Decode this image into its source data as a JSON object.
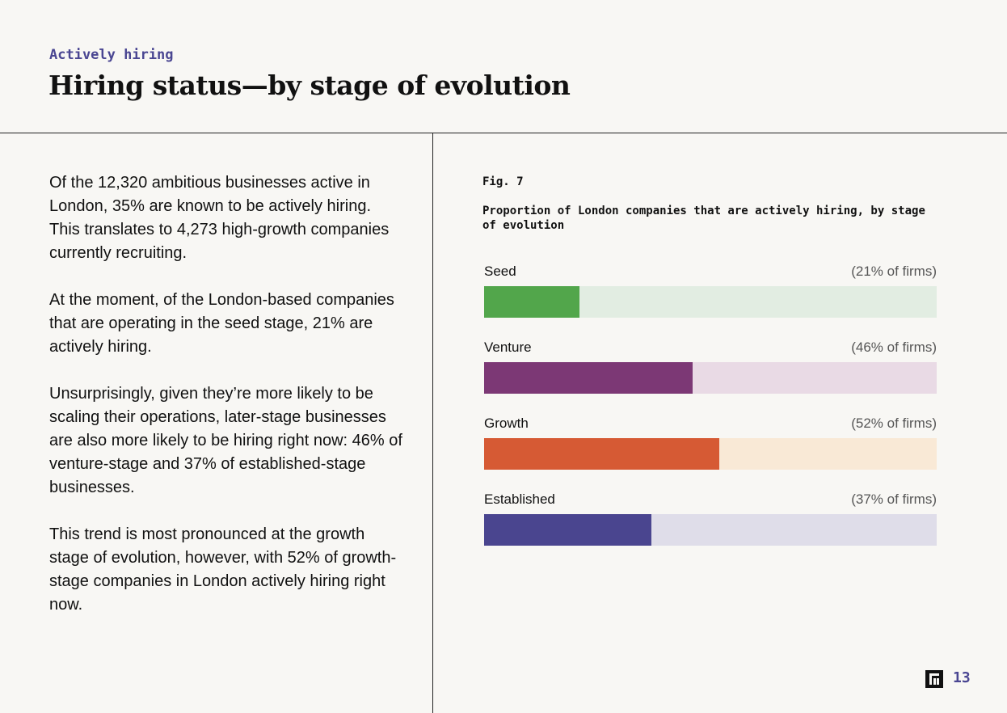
{
  "header": {
    "kicker": "Actively hiring",
    "title": "Hiring status—by stage of evolution"
  },
  "body": {
    "paragraphs": [
      "Of the 12,320 ambitious businesses active in London, 35% are known to be actively hiring. This translates to 4,273 high-growth companies currently recruiting.",
      "At the moment, of the London-based companies that are operating in the seed stage, 21% are actively hiring.",
      "Unsurprisingly, given they’re more likely to be scaling their operations, later-stage businesses are also more likely to be hiring right now: 46% of venture-stage and 37% of established-stage businesses.",
      "This trend is most pronounced at the growth stage of evolution, however, with 52% of growth-stage companies in London actively hiring right now."
    ]
  },
  "figure": {
    "label": "Fig. 7",
    "caption": "Proportion of London companies that are actively hiring, by stage of evolution"
  },
  "chart_data": {
    "type": "bar",
    "orientation": "horizontal",
    "categories": [
      "Seed",
      "Venture",
      "Growth",
      "Established"
    ],
    "values": [
      21,
      46,
      52,
      37
    ],
    "value_labels": [
      "(21% of firms)",
      "(46% of firms)",
      "(52% of firms)",
      "(37% of firms)"
    ],
    "xlim": [
      0,
      100
    ],
    "unit": "%",
    "grid": false,
    "colors": [
      "#52a64b",
      "#7c3875",
      "#d65a34",
      "#4a458f"
    ],
    "track_colors": [
      "#e2ede2",
      "#e9dae5",
      "#f9e9d6",
      "#dfdde9"
    ]
  },
  "footer": {
    "page_number": "13",
    "logo_icon": "brand-logo-icon"
  }
}
